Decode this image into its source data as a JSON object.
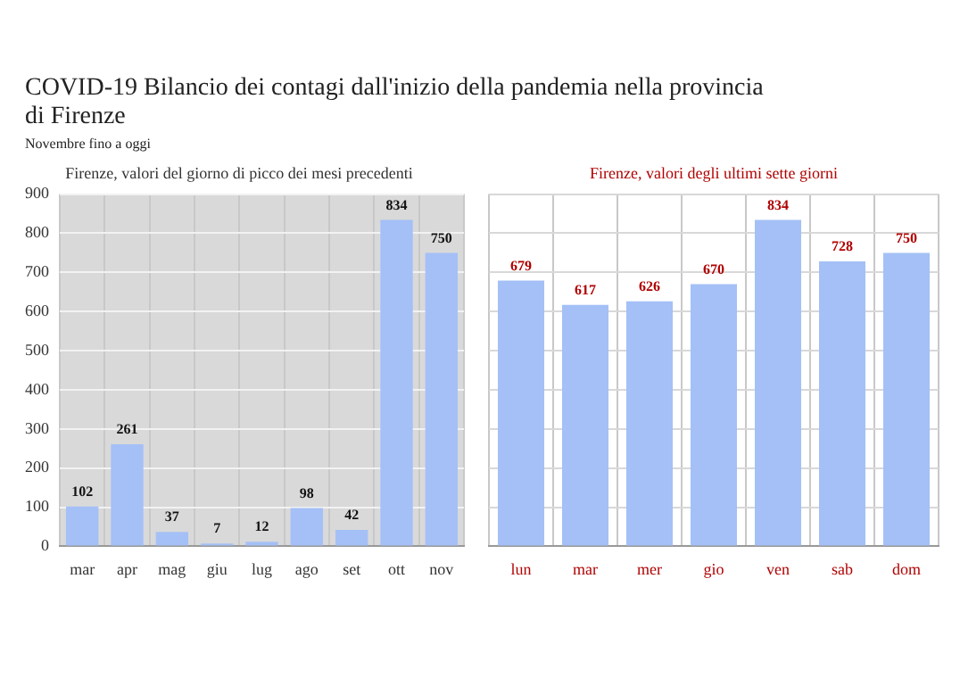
{
  "chart_data": [
    {
      "type": "other",
      "title": "COVID-19 Bilancio dei contagi dall'inizio della pandemia nella provincia di Firenze",
      "subtitle": "Novembre fino a oggi"
    },
    {
      "type": "bar",
      "title": "Firenze, valori del giorno di picco dei mesi precedenti",
      "categories": [
        "mar",
        "apr",
        "mag",
        "giu",
        "lug",
        "ago",
        "set",
        "ott",
        "nov"
      ],
      "values": [
        102,
        261,
        37,
        7,
        12,
        98,
        42,
        834,
        750
      ],
      "color": "#a4c0f6",
      "ylim": [
        0,
        900
      ],
      "yticks": [
        0,
        100,
        200,
        300,
        400,
        500,
        600,
        700,
        800,
        900
      ],
      "grid": true,
      "data_labels": true
    },
    {
      "type": "bar",
      "title": "Firenze, valori degli ultimi sette giorni",
      "categories": [
        "lun",
        "mar",
        "mer",
        "gio",
        "ven",
        "sab",
        "dom"
      ],
      "values": [
        679,
        617,
        626,
        670,
        834,
        728,
        750
      ],
      "color": "#a4c0f6",
      "ylim": [
        0,
        900
      ],
      "grid": true,
      "data_labels": true,
      "tick_labels": "x"
    }
  ]
}
